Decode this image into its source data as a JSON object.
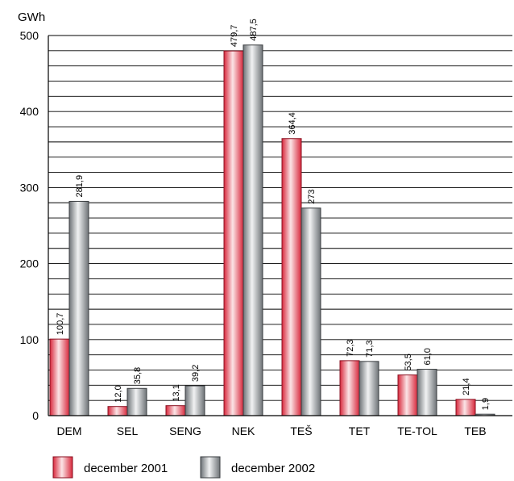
{
  "chart_data": {
    "type": "bar",
    "title": "",
    "xlabel": "",
    "ylabel": "GWh",
    "ylim": [
      0,
      500
    ],
    "yticks": [
      0,
      100,
      200,
      300,
      400,
      500
    ],
    "grid": true,
    "legend_position": "bottom-left",
    "categories": [
      "DEM",
      "SEL",
      "SENG",
      "NEK",
      "TEŠ",
      "TET",
      "TE-TOL",
      "TEB"
    ],
    "series": [
      {
        "name": "december 2001",
        "color": "#e8505a",
        "values": [
          100.7,
          12.0,
          13.1,
          479.7,
          364.4,
          72.3,
          53.5,
          21.4
        ],
        "labels": [
          "100,7",
          "12,0",
          "13,1",
          "479,7",
          "364,4",
          "72,3",
          "53,5",
          "21,4"
        ]
      },
      {
        "name": "december 2002",
        "color": "#9a9fa4",
        "values": [
          281.9,
          35.8,
          39.2,
          487.5,
          273,
          71.3,
          61.0,
          1.9
        ],
        "labels": [
          "281,9",
          "35,8",
          "39,2",
          "487,5",
          "273",
          "71,3",
          "61,0",
          "1,9"
        ]
      }
    ]
  }
}
